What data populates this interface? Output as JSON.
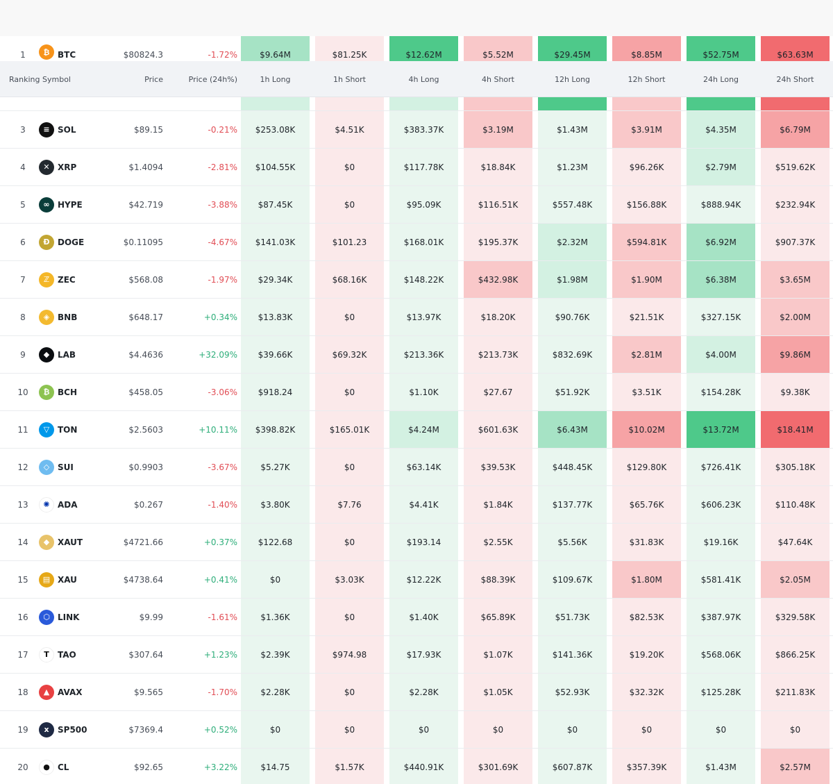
{
  "columns": {
    "ranking": "Ranking",
    "symbol": "Symbol",
    "price": "Price",
    "change": "Price (24h%)",
    "h1_long": "1h Long",
    "h1_short": "1h Short",
    "h4_long": "4h Long",
    "h4_short": "4h Short",
    "h12_long": "12h Long",
    "h12_short": "12h Short",
    "h24_long": "24h Long",
    "h24_short": "24h Short"
  },
  "colors": {
    "green_strong": "#4ec98a",
    "green_mid": "#a6e3c5",
    "green_light": "#d3f1e2",
    "green_faint": "#e9f6ef",
    "red_strong": "#f16b6f",
    "red_mid": "#f6a3a5",
    "red_light": "#f9c8c9",
    "red_faint": "#fbe9ea"
  },
  "rows": [
    {
      "rank": "1",
      "symbol": "BTC",
      "icon": "bitcoin-icon",
      "price": "$80824.3",
      "change": "-1.72%",
      "dir": "neg",
      "cells": [
        "$9.64M",
        "$81.25K",
        "$12.62M",
        "$5.52M",
        "$29.45M",
        "$8.85M",
        "$52.75M",
        "$63.63M"
      ],
      "shade": [
        "g3",
        "r0",
        "g4",
        "r2",
        "g4",
        "r3",
        "g4",
        "r4"
      ]
    },
    {
      "rank": "3",
      "symbol": "SOL",
      "icon": "solana-icon",
      "price": "$89.15",
      "change": "-0.21%",
      "dir": "neg",
      "cells": [
        "$253.08K",
        "$4.51K",
        "$383.37K",
        "$3.19M",
        "$1.43M",
        "$3.91M",
        "$4.35M",
        "$6.79M"
      ],
      "shade": [
        "g1",
        "r0",
        "g1",
        "r2",
        "g1",
        "r2",
        "g2",
        "r3"
      ]
    },
    {
      "rank": "4",
      "symbol": "XRP",
      "icon": "xrp-icon",
      "price": "$1.4094",
      "change": "-2.81%",
      "dir": "neg",
      "cells": [
        "$104.55K",
        "$0",
        "$117.78K",
        "$18.84K",
        "$1.23M",
        "$96.26K",
        "$2.79M",
        "$519.62K"
      ],
      "shade": [
        "g1",
        "r0",
        "g1",
        "r0",
        "g1",
        "r0",
        "g2",
        "r0"
      ]
    },
    {
      "rank": "5",
      "symbol": "HYPE",
      "icon": "hyperliquid-icon",
      "price": "$42.719",
      "change": "-3.88%",
      "dir": "neg",
      "cells": [
        "$87.45K",
        "$0",
        "$95.09K",
        "$116.51K",
        "$557.48K",
        "$156.88K",
        "$888.94K",
        "$232.94K"
      ],
      "shade": [
        "g1",
        "r0",
        "g1",
        "r0",
        "g1",
        "r0",
        "g1",
        "r0"
      ]
    },
    {
      "rank": "6",
      "symbol": "DOGE",
      "icon": "dogecoin-icon",
      "price": "$0.11095",
      "change": "-4.67%",
      "dir": "neg",
      "cells": [
        "$141.03K",
        "$101.23",
        "$168.01K",
        "$195.37K",
        "$2.32M",
        "$594.81K",
        "$6.92M",
        "$907.37K"
      ],
      "shade": [
        "g1",
        "r0",
        "g1",
        "r0",
        "g2",
        "r1",
        "g3",
        "r0"
      ]
    },
    {
      "rank": "7",
      "symbol": "ZEC",
      "icon": "zcash-icon",
      "price": "$568.08",
      "change": "-1.97%",
      "dir": "neg",
      "cells": [
        "$29.34K",
        "$68.16K",
        "$148.22K",
        "$432.98K",
        "$1.98M",
        "$1.90M",
        "$6.38M",
        "$3.65M"
      ],
      "shade": [
        "g1",
        "r0",
        "g1",
        "r1",
        "g2",
        "r1",
        "g3",
        "r2"
      ]
    },
    {
      "rank": "8",
      "symbol": "BNB",
      "icon": "bnb-icon",
      "price": "$648.17",
      "change": "+0.34%",
      "dir": "pos",
      "cells": [
        "$13.83K",
        "$0",
        "$13.97K",
        "$18.20K",
        "$90.76K",
        "$21.51K",
        "$327.15K",
        "$2.00M"
      ],
      "shade": [
        "g1",
        "r0",
        "g1",
        "r0",
        "g1",
        "r0",
        "g1",
        "r1"
      ]
    },
    {
      "rank": "9",
      "symbol": "LAB",
      "icon": "lab-icon",
      "price": "$4.4636",
      "change": "+32.09%",
      "dir": "pos",
      "cells": [
        "$39.66K",
        "$69.32K",
        "$213.36K",
        "$213.73K",
        "$832.69K",
        "$2.81M",
        "$4.00M",
        "$9.86M"
      ],
      "shade": [
        "g1",
        "r0",
        "g1",
        "r0",
        "g1",
        "r2",
        "g2",
        "r3"
      ]
    },
    {
      "rank": "10",
      "symbol": "BCH",
      "icon": "bitcoin-cash-icon",
      "price": "$458.05",
      "change": "-3.06%",
      "dir": "neg",
      "cells": [
        "$918.24",
        "$0",
        "$1.10K",
        "$27.67",
        "$51.92K",
        "$3.51K",
        "$154.28K",
        "$9.38K"
      ],
      "shade": [
        "g1",
        "r0",
        "g1",
        "r0",
        "g1",
        "r0",
        "g1",
        "r0"
      ]
    },
    {
      "rank": "11",
      "symbol": "TON",
      "icon": "toncoin-icon",
      "price": "$2.5603",
      "change": "+10.11%",
      "dir": "pos",
      "cells": [
        "$398.82K",
        "$165.01K",
        "$4.24M",
        "$601.63K",
        "$6.43M",
        "$10.02M",
        "$13.72M",
        "$18.41M"
      ],
      "shade": [
        "g1",
        "r0",
        "g2",
        "r0",
        "g3",
        "r3",
        "g4",
        "r4"
      ]
    },
    {
      "rank": "12",
      "symbol": "SUI",
      "icon": "sui-icon",
      "price": "$0.9903",
      "change": "-3.67%",
      "dir": "neg",
      "cells": [
        "$5.27K",
        "$0",
        "$63.14K",
        "$39.53K",
        "$448.45K",
        "$129.80K",
        "$726.41K",
        "$305.18K"
      ],
      "shade": [
        "g1",
        "r0",
        "g1",
        "r0",
        "g1",
        "r0",
        "g1",
        "r0"
      ]
    },
    {
      "rank": "13",
      "symbol": "ADA",
      "icon": "cardano-icon",
      "price": "$0.267",
      "change": "-1.40%",
      "dir": "neg",
      "cells": [
        "$3.80K",
        "$7.76",
        "$4.41K",
        "$1.84K",
        "$137.77K",
        "$65.76K",
        "$606.23K",
        "$110.48K"
      ],
      "shade": [
        "g1",
        "r0",
        "g1",
        "r0",
        "g1",
        "r0",
        "g1",
        "r0"
      ]
    },
    {
      "rank": "14",
      "symbol": "XAUT",
      "icon": "tether-gold-icon",
      "price": "$4721.66",
      "change": "+0.37%",
      "dir": "pos",
      "cells": [
        "$122.68",
        "$0",
        "$193.14",
        "$2.55K",
        "$5.56K",
        "$31.83K",
        "$19.16K",
        "$47.64K"
      ],
      "shade": [
        "g1",
        "r0",
        "g1",
        "r0",
        "g1",
        "r0",
        "g1",
        "r0"
      ]
    },
    {
      "rank": "15",
      "symbol": "XAU",
      "icon": "gold-bars-icon",
      "price": "$4738.64",
      "change": "+0.41%",
      "dir": "pos",
      "cells": [
        "$0",
        "$3.03K",
        "$12.22K",
        "$88.39K",
        "$109.67K",
        "$1.80M",
        "$581.41K",
        "$2.05M"
      ],
      "shade": [
        "g1",
        "r0",
        "g1",
        "r0",
        "g1",
        "r1",
        "g1",
        "r1"
      ]
    },
    {
      "rank": "16",
      "symbol": "LINK",
      "icon": "chainlink-icon",
      "price": "$9.99",
      "change": "-1.61%",
      "dir": "neg",
      "cells": [
        "$1.36K",
        "$0",
        "$1.40K",
        "$65.89K",
        "$51.73K",
        "$82.53K",
        "$387.97K",
        "$329.58K"
      ],
      "shade": [
        "g1",
        "r0",
        "g1",
        "r0",
        "g1",
        "r0",
        "g1",
        "r0"
      ]
    },
    {
      "rank": "17",
      "symbol": "TAO",
      "icon": "bittensor-icon",
      "price": "$307.64",
      "change": "+1.23%",
      "dir": "pos",
      "cells": [
        "$2.39K",
        "$974.98",
        "$17.93K",
        "$1.07K",
        "$141.36K",
        "$19.20K",
        "$568.06K",
        "$866.25K"
      ],
      "shade": [
        "g1",
        "r0",
        "g1",
        "r0",
        "g1",
        "r0",
        "g1",
        "r0"
      ]
    },
    {
      "rank": "18",
      "symbol": "AVAX",
      "icon": "avalanche-icon",
      "price": "$9.565",
      "change": "-1.70%",
      "dir": "neg",
      "cells": [
        "$2.28K",
        "$0",
        "$2.28K",
        "$1.05K",
        "$52.93K",
        "$32.32K",
        "$125.28K",
        "$211.83K"
      ],
      "shade": [
        "g1",
        "r0",
        "g1",
        "r0",
        "g1",
        "r0",
        "g1",
        "r0"
      ]
    },
    {
      "rank": "19",
      "symbol": "SP500",
      "icon": "sp500-xyz-icon",
      "price": "$7369.4",
      "change": "+0.52%",
      "dir": "pos",
      "cells": [
        "$0",
        "$0",
        "$0",
        "$0",
        "$0",
        "$0",
        "$0",
        "$0"
      ],
      "shade": [
        "g1",
        "r0",
        "g1",
        "r0",
        "g1",
        "r0",
        "g1",
        "r0"
      ]
    },
    {
      "rank": "20",
      "symbol": "CL",
      "icon": "oil-drop-icon",
      "price": "$92.65",
      "change": "+3.22%",
      "dir": "pos",
      "cells": [
        "$14.75",
        "$1.57K",
        "$440.91K",
        "$301.69K",
        "$607.87K",
        "$357.39K",
        "$1.43M",
        "$2.57M"
      ],
      "shade": [
        "g1",
        "r0",
        "g1",
        "r0",
        "g1",
        "r0",
        "g1",
        "r1"
      ]
    }
  ],
  "partial_row_shade": [
    "g2",
    "r0",
    "g2",
    "r1",
    "g4",
    "r1",
    "g4",
    "r4"
  ]
}
